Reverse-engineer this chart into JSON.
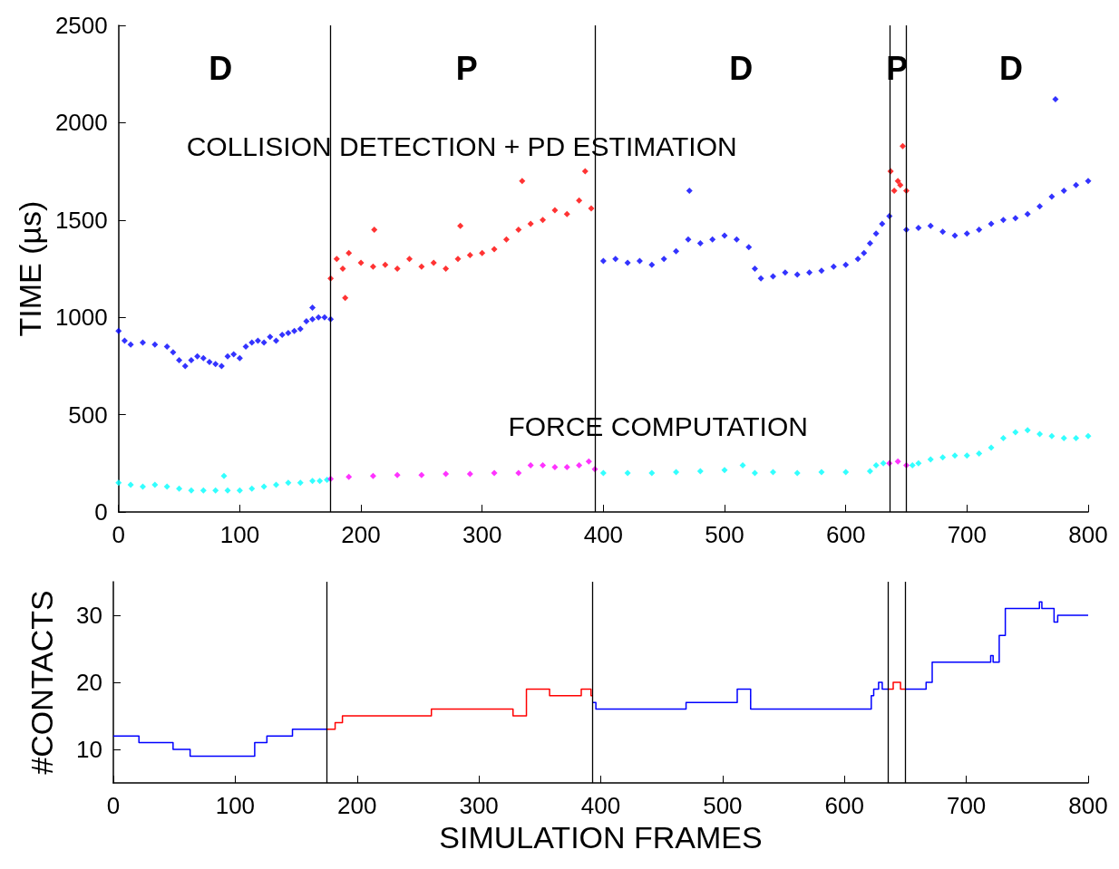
{
  "chart_data": [
    {
      "type": "scatter",
      "ylabel": "TIME (µs)",
      "xlim": [
        0,
        800
      ],
      "xticks": [
        0,
        100,
        200,
        300,
        400,
        500,
        600,
        700,
        800
      ],
      "ylim": [
        0,
        2500
      ],
      "yticks": [
        0,
        500,
        1000,
        1500,
        2000,
        2500
      ],
      "grid": false,
      "marker": "diamond",
      "series": [
        {
          "color": "#0000ff",
          "x": [
            0,
            5,
            10,
            20,
            30,
            40,
            45,
            50,
            55,
            60,
            65,
            70,
            75,
            80,
            85,
            90,
            95,
            100,
            105,
            110,
            115,
            120,
            125,
            130,
            135,
            140,
            145,
            150,
            155,
            160,
            165,
            170,
            175,
            160,
            400,
            410,
            420,
            430,
            440,
            450,
            460,
            470,
            480,
            490,
            500,
            510,
            520,
            525,
            530,
            540,
            550,
            560,
            570,
            580,
            590,
            600,
            610,
            615,
            620,
            625,
            630,
            636,
            471,
            650,
            660,
            670,
            680,
            690,
            700,
            710,
            720,
            730,
            740,
            750,
            760,
            770,
            780,
            790,
            800,
            773
          ],
          "values": [
            930,
            880,
            860,
            870,
            860,
            850,
            820,
            780,
            750,
            780,
            800,
            790,
            770,
            760,
            750,
            800,
            810,
            790,
            850,
            870,
            880,
            870,
            900,
            880,
            910,
            920,
            930,
            940,
            980,
            990,
            1000,
            1000,
            990,
            1050,
            1290,
            1300,
            1280,
            1290,
            1270,
            1300,
            1340,
            1400,
            1380,
            1400,
            1420,
            1400,
            1360,
            1250,
            1200,
            1210,
            1230,
            1220,
            1230,
            1240,
            1260,
            1270,
            1300,
            1330,
            1380,
            1430,
            1480,
            1520,
            1650,
            1450,
            1460,
            1470,
            1440,
            1420,
            1430,
            1450,
            1480,
            1500,
            1510,
            1530,
            1570,
            1620,
            1650,
            1680,
            1700,
            2120
          ]
        },
        {
          "color": "#ff0000",
          "x": [
            175,
            180,
            185,
            187,
            190,
            200,
            211,
            210,
            220,
            230,
            240,
            250,
            260,
            270,
            280,
            282,
            290,
            300,
            310,
            320,
            330,
            333,
            340,
            350,
            360,
            370,
            380,
            385,
            390,
            637,
            640,
            643,
            645,
            647,
            650
          ],
          "values": [
            1200,
            1300,
            1250,
            1100,
            1330,
            1280,
            1450,
            1260,
            1270,
            1250,
            1300,
            1260,
            1280,
            1250,
            1300,
            1470,
            1320,
            1330,
            1350,
            1400,
            1450,
            1700,
            1480,
            1500,
            1550,
            1530,
            1600,
            1750,
            1560,
            1750,
            1650,
            1700,
            1680,
            1880,
            1650
          ]
        },
        {
          "color": "#00ffff",
          "x": [
            0,
            10,
            20,
            30,
            40,
            50,
            60,
            70,
            80,
            87,
            90,
            100,
            110,
            120,
            130,
            140,
            150,
            160,
            166,
            172,
            400,
            420,
            440,
            460,
            480,
            500,
            515,
            525,
            540,
            560,
            580,
            600,
            620,
            625,
            631,
            655,
            660,
            670,
            680,
            690,
            700,
            710,
            720,
            730,
            740,
            750,
            760,
            770,
            780,
            790,
            800
          ],
          "values": [
            150,
            140,
            130,
            140,
            130,
            120,
            110,
            110,
            110,
            185,
            110,
            110,
            120,
            130,
            140,
            150,
            150,
            160,
            160,
            165,
            200,
            200,
            200,
            205,
            210,
            215,
            240,
            200,
            205,
            200,
            205,
            205,
            210,
            240,
            250,
            240,
            250,
            270,
            280,
            290,
            290,
            300,
            330,
            380,
            410,
            420,
            400,
            390,
            380,
            380,
            390
          ]
        },
        {
          "color": "#ff00ff",
          "x": [
            175,
            190,
            210,
            230,
            250,
            270,
            290,
            310,
            330,
            340,
            350,
            360,
            370,
            380,
            388,
            393,
            636,
            643,
            650
          ],
          "values": [
            170,
            180,
            185,
            190,
            190,
            195,
            195,
            200,
            200,
            240,
            240,
            230,
            230,
            240,
            260,
            220,
            250,
            260,
            240
          ]
        }
      ],
      "ref_lines": [
        {
          "axis": "x",
          "value": 175,
          "color": "#000000"
        },
        {
          "axis": "x",
          "value": 393,
          "color": "#000000"
        },
        {
          "axis": "x",
          "value": 636,
          "color": "#000000"
        },
        {
          "axis": "x",
          "value": 650,
          "color": "#000000"
        }
      ],
      "annotations": [
        "D",
        "P",
        "D",
        "P",
        "D",
        "COLLISION DETECTION + PD ESTIMATION",
        "FORCE COMPUTATION"
      ]
    },
    {
      "type": "step",
      "xlabel": "SIMULATION FRAMES",
      "ylabel": "#CONTACTS",
      "xlim": [
        0,
        800
      ],
      "xticks": [
        0,
        100,
        200,
        300,
        400,
        500,
        600,
        700,
        800
      ],
      "ylim": [
        5,
        35
      ],
      "yticks": [
        10,
        20,
        30
      ],
      "grid": false,
      "marker": "none",
      "series": [
        {
          "color": "#0000ff",
          "x": [
            0,
            21,
            49,
            63,
            116,
            126,
            147,
            175,
            null,
            393,
            396,
            470,
            512,
            523,
            622,
            624,
            628,
            631,
            636,
            null,
            650,
            667,
            672,
            720,
            722,
            727,
            732,
            760,
            762,
            772,
            775,
            800
          ],
          "values": [
            12,
            11,
            10,
            9,
            11,
            12,
            13,
            13,
            null,
            17,
            16,
            17,
            19,
            16,
            18,
            19,
            20,
            19,
            19,
            null,
            19,
            20,
            23,
            24,
            23,
            27,
            31,
            32,
            31,
            29,
            30,
            30
          ]
        },
        {
          "color": "#ff0000",
          "x": [
            175,
            182,
            188,
            261,
            328,
            339,
            358,
            384,
            392,
            393,
            null,
            636,
            640,
            646,
            650
          ],
          "values": [
            13,
            14,
            15,
            16,
            15,
            19,
            18,
            19,
            18,
            18,
            null,
            19,
            20,
            19,
            19
          ]
        }
      ],
      "ref_lines": [
        {
          "axis": "x",
          "value": 175,
          "color": "#000000"
        },
        {
          "axis": "x",
          "value": 393,
          "color": "#000000"
        },
        {
          "axis": "x",
          "value": 636,
          "color": "#000000"
        },
        {
          "axis": "x",
          "value": 650,
          "color": "#000000"
        }
      ]
    }
  ]
}
